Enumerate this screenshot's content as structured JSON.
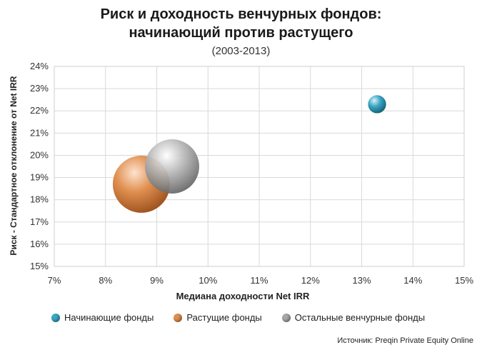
{
  "chart_data": {
    "type": "bubble",
    "title_line1": "Риск и доходность венчурных фондов:",
    "title_line2": "начинающий против растущего",
    "subtitle": "(2003-2013)",
    "xlabel": "Медиана доходности Net IRR",
    "ylabel": "Риск - Стандартное отклонение от Net IRR",
    "xlim": [
      7,
      15
    ],
    "ylim": [
      15,
      24
    ],
    "x_ticks": [
      "7%",
      "8%",
      "9%",
      "10%",
      "11%",
      "12%",
      "13%",
      "14%",
      "15%"
    ],
    "y_ticks": [
      "15%",
      "16%",
      "17%",
      "18%",
      "19%",
      "20%",
      "21%",
      "22%",
      "23%",
      "24%"
    ],
    "grid": true,
    "legend_position": "bottom",
    "series": [
      {
        "name": "Начинающие фонды",
        "x": 13.3,
        "y": 22.3,
        "size": 1,
        "color": "#3aa6c4"
      },
      {
        "name": "Растущие фонды",
        "x": 8.7,
        "y": 18.7,
        "size": 10,
        "color": "#e08f4f"
      },
      {
        "name": "Остальные венчурные фонды",
        "x": 9.3,
        "y": 19.5,
        "size": 9,
        "color": "#a8a8a8"
      }
    ]
  },
  "source": "Источник: Preqin Private Equity Online"
}
